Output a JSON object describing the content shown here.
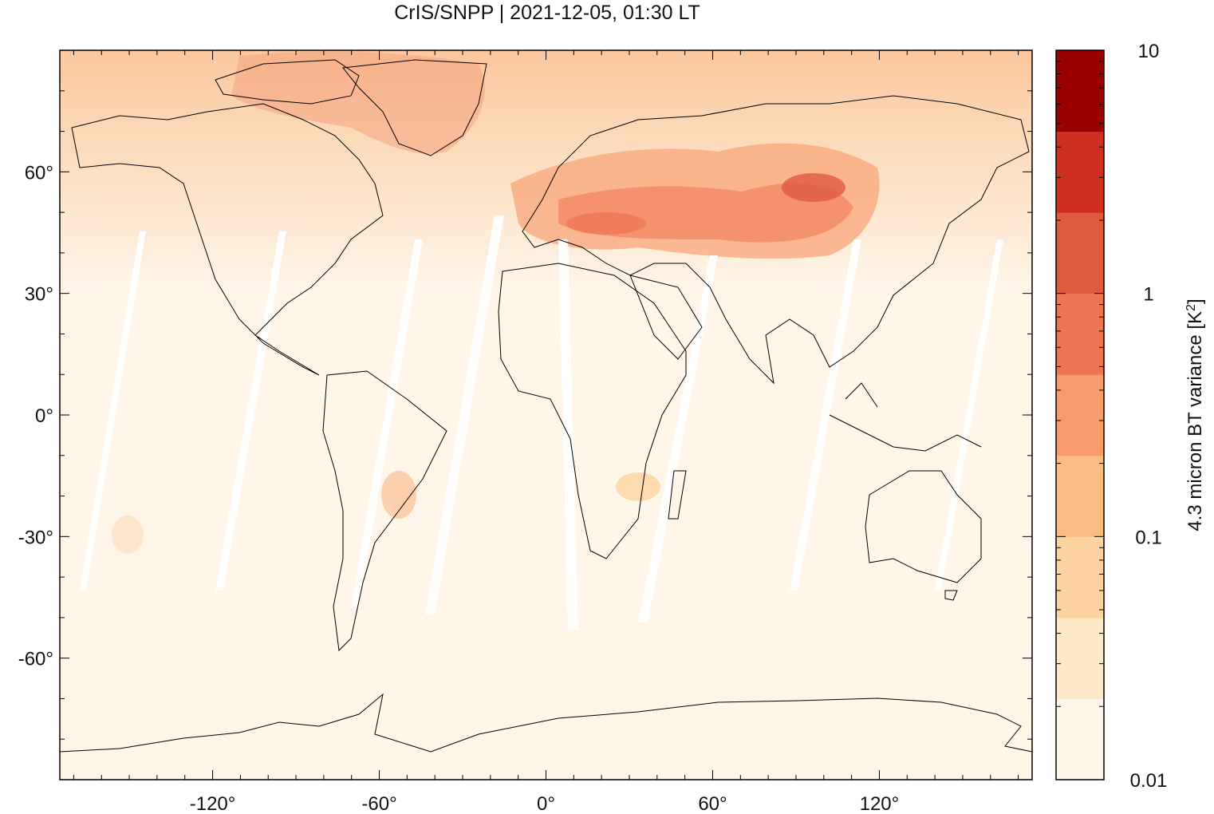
{
  "title": "CrIS/SNPP | 2021-12-05, 01:30 LT",
  "map": {
    "projection": "equirectangular",
    "lon_range": [
      -175,
      175
    ],
    "lat_range": [
      -90,
      90
    ],
    "x_ticks": [
      {
        "value": -120,
        "label": "-120°"
      },
      {
        "value": -60,
        "label": "-60°"
      },
      {
        "value": 0,
        "label": "0°"
      },
      {
        "value": 60,
        "label": "60°"
      },
      {
        "value": 120,
        "label": "120°"
      }
    ],
    "y_ticks": [
      {
        "value": 60,
        "label": "60°"
      },
      {
        "value": 30,
        "label": "30°"
      },
      {
        "value": 0,
        "label": "0°"
      },
      {
        "value": -30,
        "label": "-30°"
      },
      {
        "value": -60,
        "label": "-60°"
      }
    ]
  },
  "colorbar": {
    "label_prefix": "4.3 micron BT variance [K",
    "label_sup": "2",
    "label_suffix": "]",
    "scale": "log",
    "range": [
      0.01,
      10
    ],
    "tick_labels": [
      {
        "value": 10,
        "label": "10"
      },
      {
        "value": 1,
        "label": "1"
      },
      {
        "value": 0.1,
        "label": "0.1"
      },
      {
        "value": 0.01,
        "label": "0.01"
      }
    ],
    "colors": [
      "#fff5e8",
      "#fde8c8",
      "#fcd3a1",
      "#fcbc82",
      "#f99a6a",
      "#f07552",
      "#e05a40",
      "#cf2f20",
      "#990000"
    ]
  }
}
